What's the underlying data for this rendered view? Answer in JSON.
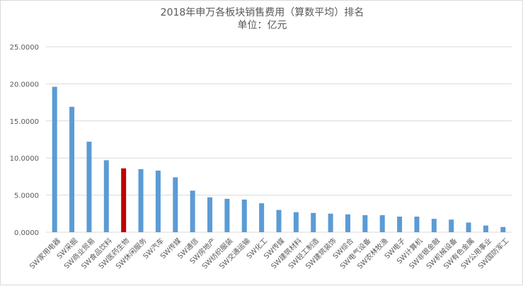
{
  "chart_data": {
    "type": "bar",
    "title": "2018年申万各板块销售费用（算数平均）排名",
    "subtitle": "单位：亿元",
    "categories": [
      "SW家用电器",
      "SW采掘",
      "SW商业贸易",
      "SW食品饮料",
      "SW医药生物",
      "SW休闲服务",
      "SW汽车",
      "SW传媒",
      "SW通信",
      "SW房地产",
      "SW纺织服装",
      "SW交通运输",
      "SW化工",
      "SW传媒",
      "SW建筑材料",
      "SW轻工制造",
      "SW建筑装饰",
      "SW综合",
      "SW电气设备",
      "SW农林牧渔",
      "SW电子",
      "SW计算机",
      "SW非银金融",
      "SW机械设备",
      "SW有色金属",
      "SW公用事业",
      "SW国防军工"
    ],
    "values": [
      19.6,
      16.9,
      12.2,
      9.7,
      8.6,
      8.5,
      8.3,
      7.4,
      5.6,
      4.7,
      4.5,
      4.4,
      3.9,
      3.0,
      2.7,
      2.6,
      2.5,
      2.4,
      2.3,
      2.3,
      2.1,
      2.1,
      1.8,
      1.7,
      1.3,
      0.9,
      0.7
    ],
    "highlight_index": 4,
    "colors": {
      "bar": "#5b9bd5",
      "highlight": "#c00000",
      "grid": "#d9d9d9",
      "text": "#595959"
    },
    "ylim": [
      0,
      25
    ],
    "yticks": [
      0,
      5,
      10,
      15,
      20,
      25
    ],
    "ytick_labels": [
      "0.0000",
      "5.0000",
      "10.0000",
      "15.0000",
      "20.0000",
      "25.0000"
    ],
    "xlabel": "",
    "ylabel": "",
    "grid": true,
    "legend": "none"
  }
}
